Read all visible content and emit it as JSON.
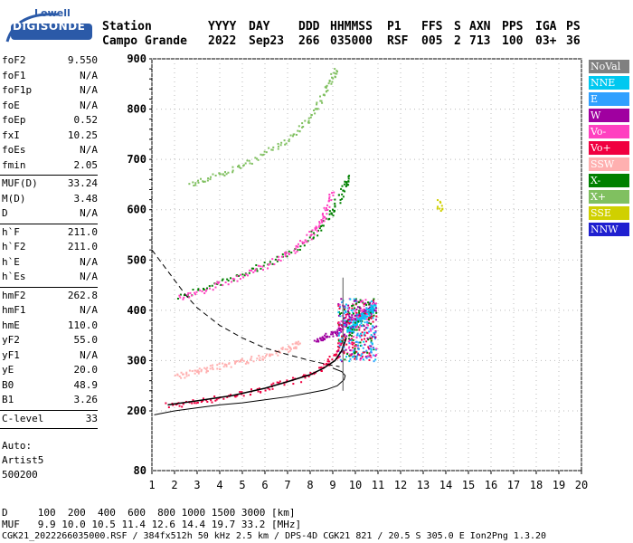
{
  "logo": {
    "line1": "Lowell",
    "line2": "DIGISONDE"
  },
  "header": {
    "row1": [
      "Station",
      "YYYY",
      "DAY",
      "DDD",
      "HHMMSS",
      "P1",
      "FFS",
      "S",
      "AXN",
      "PPS",
      "IGA",
      "PS"
    ],
    "row2": [
      "Campo Grande",
      "2022",
      "Sep23",
      "266",
      "035000",
      "RSF",
      "005",
      "2",
      "713",
      "100",
      "03+",
      "36"
    ]
  },
  "params_block1": [
    {
      "k": "foF2",
      "v": "9.550"
    },
    {
      "k": "foF1",
      "v": "N/A"
    },
    {
      "k": "foF1p",
      "v": "N/A"
    },
    {
      "k": "foE",
      "v": "N/A"
    },
    {
      "k": "foEp",
      "v": "0.52"
    },
    {
      "k": "fxI",
      "v": "10.25"
    },
    {
      "k": "foEs",
      "v": "N/A"
    },
    {
      "k": "fmin",
      "v": "2.05"
    }
  ],
  "params_block2": [
    {
      "k": "MUF(D)",
      "v": "33.24"
    },
    {
      "k": "M(D)",
      "v": "3.48"
    },
    {
      "k": "D",
      "v": "N/A"
    }
  ],
  "params_block3": [
    {
      "k": "h`F",
      "v": "211.0"
    },
    {
      "k": "h`F2",
      "v": "211.0"
    },
    {
      "k": "h`E",
      "v": "N/A"
    },
    {
      "k": "h`Es",
      "v": "N/A"
    }
  ],
  "params_block4": [
    {
      "k": "hmF2",
      "v": "262.8"
    },
    {
      "k": "hmF1",
      "v": "N/A"
    },
    {
      "k": "hmE",
      "v": "110.0"
    },
    {
      "k": "yF2",
      "v": "55.0"
    },
    {
      "k": "yF1",
      "v": "N/A"
    },
    {
      "k": "yE",
      "v": "20.0"
    },
    {
      "k": "B0",
      "v": "48.9"
    },
    {
      "k": "B1",
      "v": "3.26"
    }
  ],
  "params_block5": [
    {
      "k": "C-level",
      "v": "33"
    }
  ],
  "auto": {
    "l1": "Auto:",
    "l2": "Artist5",
    "l3": "500200"
  },
  "legend": [
    {
      "label": "NoVal",
      "color": "#808080"
    },
    {
      "label": "NNE",
      "color": "#00c8f0"
    },
    {
      "label": "E",
      "color": "#30a0ff"
    },
    {
      "label": "W",
      "color": "#a000a0"
    },
    {
      "label": "Vo-",
      "color": "#ff40c0"
    },
    {
      "label": "Vo+",
      "color": "#f00040"
    },
    {
      "label": "SSW",
      "color": "#ffb0b0"
    },
    {
      "label": "X-",
      "color": "#008000"
    },
    {
      "label": "X+",
      "color": "#80c060"
    },
    {
      "label": "SSE",
      "color": "#d0d000"
    },
    {
      "label": "NNW",
      "color": "#2020d0"
    }
  ],
  "footer": {
    "line1": "D     100  200  400  600  800 1000 1500 3000 [km]",
    "line2": "MUF   9.9 10.0 10.5 11.4 12.6 14.4 19.7 33.2 [MHz]",
    "line3": "CGK21_2022266035000.RSF / 384fx512h 50 kHz 2.5 km / DPS-4D CGK21 821 / 20.5 S 305.0 E Ion2Png 1.3.20"
  },
  "chart_data": {
    "type": "scatter",
    "xlim": [
      1,
      20
    ],
    "ylim": [
      80,
      900
    ],
    "x_ticks": [
      1,
      2,
      3,
      4,
      5,
      6,
      7,
      8,
      9,
      10,
      11,
      12,
      13,
      14,
      15,
      16,
      17,
      18,
      19,
      20
    ],
    "y_ticks": [
      80,
      200,
      300,
      400,
      500,
      600,
      700,
      800,
      900
    ],
    "grid": "dotted",
    "legend_position": "right",
    "series": [
      {
        "name": "Vo+",
        "color": "#f00040",
        "x": [
          1.7,
          2.5,
          3.5,
          4.5,
          5.5,
          6.5,
          7.5,
          8.3,
          8.8,
          9.2,
          9.5
        ],
        "y": [
          212,
          217,
          224,
          232,
          240,
          252,
          265,
          282,
          300,
          320,
          350
        ]
      },
      {
        "name": "X-",
        "color": "#008000",
        "x": [
          2.2,
          3.2,
          4.2,
          5.2,
          6.2,
          7.2,
          8.0,
          8.6,
          9.0,
          9.3,
          9.5,
          9.65
        ],
        "y": [
          430,
          442,
          460,
          478,
          498,
          520,
          548,
          575,
          600,
          630,
          650,
          665
        ]
      },
      {
        "name": "W",
        "color": "#a000a0",
        "x": [
          8.2,
          8.7,
          9.2,
          9.6,
          10.0,
          10.5,
          10.8
        ],
        "y": [
          340,
          350,
          360,
          380,
          390,
          400,
          410
        ]
      },
      {
        "name": "NNE",
        "color": "#00c8f0",
        "x": [
          9.6,
          9.9,
          10.2,
          10.5,
          10.8
        ],
        "y": [
          360,
          370,
          385,
          395,
          410
        ]
      },
      {
        "name": "SSW",
        "color": "#ffb0b0",
        "x": [
          2.0,
          3.0,
          4.0,
          5.0,
          6.0,
          7.0,
          7.5
        ],
        "y": [
          270,
          280,
          290,
          300,
          310,
          325,
          335
        ]
      },
      {
        "name": "Vo-",
        "color": "#ff40c0",
        "x": [
          2.1,
          3.5,
          5.0,
          6.5,
          7.5,
          8.2,
          8.6,
          9.0
        ],
        "y": [
          425,
          445,
          470,
          500,
          530,
          560,
          590,
          640
        ]
      },
      {
        "name": "X+",
        "color": "#80c060",
        "x": [
          2.7,
          4.0,
          5.5,
          7.0,
          8.0,
          8.7,
          9.1
        ],
        "y": [
          650,
          672,
          700,
          740,
          785,
          840,
          880
        ]
      },
      {
        "name": "SSE",
        "color": "#d0d000",
        "x": [
          13.7,
          13.7
        ],
        "y": [
          600,
          620
        ]
      }
    ],
    "profile_solid": {
      "x": [
        1.1,
        2.0,
        3.0,
        4.0,
        5.0,
        6.0,
        7.0,
        8.0,
        8.7,
        9.2,
        9.5,
        9.55,
        9.4,
        9.0
      ],
      "y": [
        192,
        200,
        206,
        212,
        216,
        222,
        228,
        236,
        242,
        250,
        262,
        270,
        278,
        285
      ]
    },
    "profile_dashed": {
      "x": [
        1.0,
        1.5,
        2.0,
        2.5,
        3.0,
        4.0,
        5.0,
        6.0,
        7.0,
        8.0,
        8.8,
        9.3
      ],
      "y": [
        520,
        490,
        460,
        430,
        405,
        370,
        345,
        325,
        312,
        300,
        292,
        288
      ]
    },
    "trace_curve": {
      "x": [
        1.7,
        3.0,
        4.5,
        6.0,
        7.0,
        8.0,
        8.6,
        9.1,
        9.4,
        9.6
      ],
      "y": [
        212,
        220,
        230,
        245,
        258,
        272,
        285,
        300,
        320,
        345
      ]
    },
    "vline_x": 9.45,
    "vline_y": [
      240,
      465
    ]
  }
}
